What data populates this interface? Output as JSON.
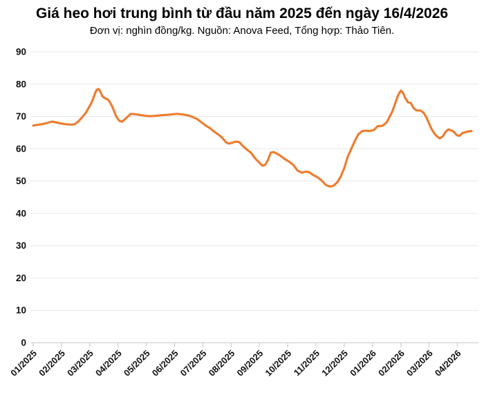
{
  "chart_data": {
    "type": "line",
    "title": "Giá heo hơi trung bình từ đầu năm 2025 đến ngày 16/4/2026",
    "subtitle": "Đơn vị: nghìn đồng/kg. Nguồn: Anova Feed, Tổng hợp: Thảo Tiên.",
    "unit": "nghìn đồng/kg",
    "x_tick_labels": [
      "01/2025",
      "02/2025",
      "03/2025",
      "04/2025",
      "05/2025",
      "06/2025",
      "07/2025",
      "08/2025",
      "09/2025",
      "10/2025",
      "11/2025",
      "12/2025",
      "01/2026",
      "02/2026",
      "03/2026",
      "04/2026"
    ],
    "y_ticks": [
      0,
      10,
      20,
      30,
      40,
      50,
      60,
      70,
      80,
      90
    ],
    "ylim": [
      0,
      90
    ],
    "grid": "horizontal",
    "legend": "none",
    "colors": {
      "line": "#ED7D31",
      "grid": "#E7E7E7",
      "axis": "#D8D8D8",
      "tick": "#D2D2D2",
      "text": "#111111",
      "background": "#FFFFFF"
    },
    "x_unit": "months since 01/2025 (decimal, 15.5 = 16/4/2026)",
    "series": [
      {
        "points": [
          [
            0,
            67.2
          ],
          [
            0.15,
            67.4
          ],
          [
            0.3,
            67.6
          ],
          [
            0.5,
            68.0
          ],
          [
            0.66,
            68.4
          ],
          [
            0.8,
            68.2
          ],
          [
            1.0,
            67.8
          ],
          [
            1.15,
            67.6
          ],
          [
            1.35,
            67.5
          ],
          [
            1.47,
            67.6
          ],
          [
            1.6,
            68.5
          ],
          [
            1.72,
            69.6
          ],
          [
            1.85,
            71.0
          ],
          [
            1.95,
            72.5
          ],
          [
            2.05,
            74.0
          ],
          [
            2.12,
            75.5
          ],
          [
            2.18,
            77.0
          ],
          [
            2.25,
            78.3
          ],
          [
            2.32,
            78.5
          ],
          [
            2.38,
            77.6
          ],
          [
            2.45,
            76.2
          ],
          [
            2.55,
            75.6
          ],
          [
            2.65,
            75.2
          ],
          [
            2.72,
            74.3
          ],
          [
            2.8,
            73.0
          ],
          [
            2.88,
            71.2
          ],
          [
            2.95,
            69.8
          ],
          [
            3.05,
            68.6
          ],
          [
            3.15,
            68.4
          ],
          [
            3.25,
            69.2
          ],
          [
            3.35,
            70.0
          ],
          [
            3.45,
            70.8
          ],
          [
            3.6,
            70.7
          ],
          [
            3.75,
            70.5
          ],
          [
            3.95,
            70.2
          ],
          [
            4.15,
            70.1
          ],
          [
            4.35,
            70.2
          ],
          [
            4.55,
            70.4
          ],
          [
            4.75,
            70.5
          ],
          [
            4.95,
            70.7
          ],
          [
            5.1,
            70.8
          ],
          [
            5.3,
            70.6
          ],
          [
            5.5,
            70.3
          ],
          [
            5.65,
            69.8
          ],
          [
            5.8,
            69.2
          ],
          [
            5.95,
            68.2
          ],
          [
            6.1,
            67.2
          ],
          [
            6.25,
            66.4
          ],
          [
            6.4,
            65.3
          ],
          [
            6.55,
            64.4
          ],
          [
            6.7,
            63.3
          ],
          [
            6.82,
            62.0
          ],
          [
            6.92,
            61.6
          ],
          [
            7.05,
            61.9
          ],
          [
            7.15,
            62.2
          ],
          [
            7.28,
            62.1
          ],
          [
            7.4,
            61.0
          ],
          [
            7.55,
            59.8
          ],
          [
            7.7,
            58.8
          ],
          [
            7.85,
            57.0
          ],
          [
            8.0,
            55.7
          ],
          [
            8.1,
            54.8
          ],
          [
            8.2,
            55.0
          ],
          [
            8.3,
            56.5
          ],
          [
            8.4,
            58.8
          ],
          [
            8.5,
            59.0
          ],
          [
            8.6,
            58.6
          ],
          [
            8.75,
            57.8
          ],
          [
            8.9,
            56.8
          ],
          [
            9.05,
            56.0
          ],
          [
            9.2,
            55.0
          ],
          [
            9.35,
            53.2
          ],
          [
            9.5,
            52.6
          ],
          [
            9.62,
            52.9
          ],
          [
            9.75,
            52.8
          ],
          [
            9.9,
            51.9
          ],
          [
            10.05,
            51.2
          ],
          [
            10.2,
            50.2
          ],
          [
            10.35,
            48.8
          ],
          [
            10.5,
            48.3
          ],
          [
            10.62,
            48.6
          ],
          [
            10.75,
            49.6
          ],
          [
            10.88,
            51.5
          ],
          [
            11.0,
            54.0
          ],
          [
            11.12,
            57.5
          ],
          [
            11.25,
            60.0
          ],
          [
            11.38,
            62.5
          ],
          [
            11.5,
            64.5
          ],
          [
            11.62,
            65.4
          ],
          [
            11.75,
            65.6
          ],
          [
            11.9,
            65.5
          ],
          [
            12.05,
            65.8
          ],
          [
            12.18,
            67.0
          ],
          [
            12.35,
            67.1
          ],
          [
            12.5,
            68.2
          ],
          [
            12.6,
            69.8
          ],
          [
            12.7,
            71.5
          ],
          [
            12.8,
            74.0
          ],
          [
            12.9,
            76.5
          ],
          [
            13.0,
            78.0
          ],
          [
            13.08,
            77.3
          ],
          [
            13.15,
            75.8
          ],
          [
            13.25,
            74.4
          ],
          [
            13.35,
            74.2
          ],
          [
            13.45,
            72.6
          ],
          [
            13.55,
            71.9
          ],
          [
            13.7,
            71.8
          ],
          [
            13.8,
            71.2
          ],
          [
            13.9,
            69.8
          ],
          [
            14.0,
            67.8
          ],
          [
            14.08,
            66.2
          ],
          [
            14.18,
            64.8
          ],
          [
            14.28,
            63.8
          ],
          [
            14.38,
            63.2
          ],
          [
            14.48,
            63.8
          ],
          [
            14.58,
            65.2
          ],
          [
            14.68,
            66.0
          ],
          [
            14.78,
            65.7
          ],
          [
            14.88,
            65.2
          ],
          [
            14.98,
            64.2
          ],
          [
            15.08,
            64.0
          ],
          [
            15.18,
            64.9
          ],
          [
            15.28,
            65.1
          ],
          [
            15.38,
            65.4
          ],
          [
            15.5,
            65.5
          ]
        ]
      }
    ]
  }
}
